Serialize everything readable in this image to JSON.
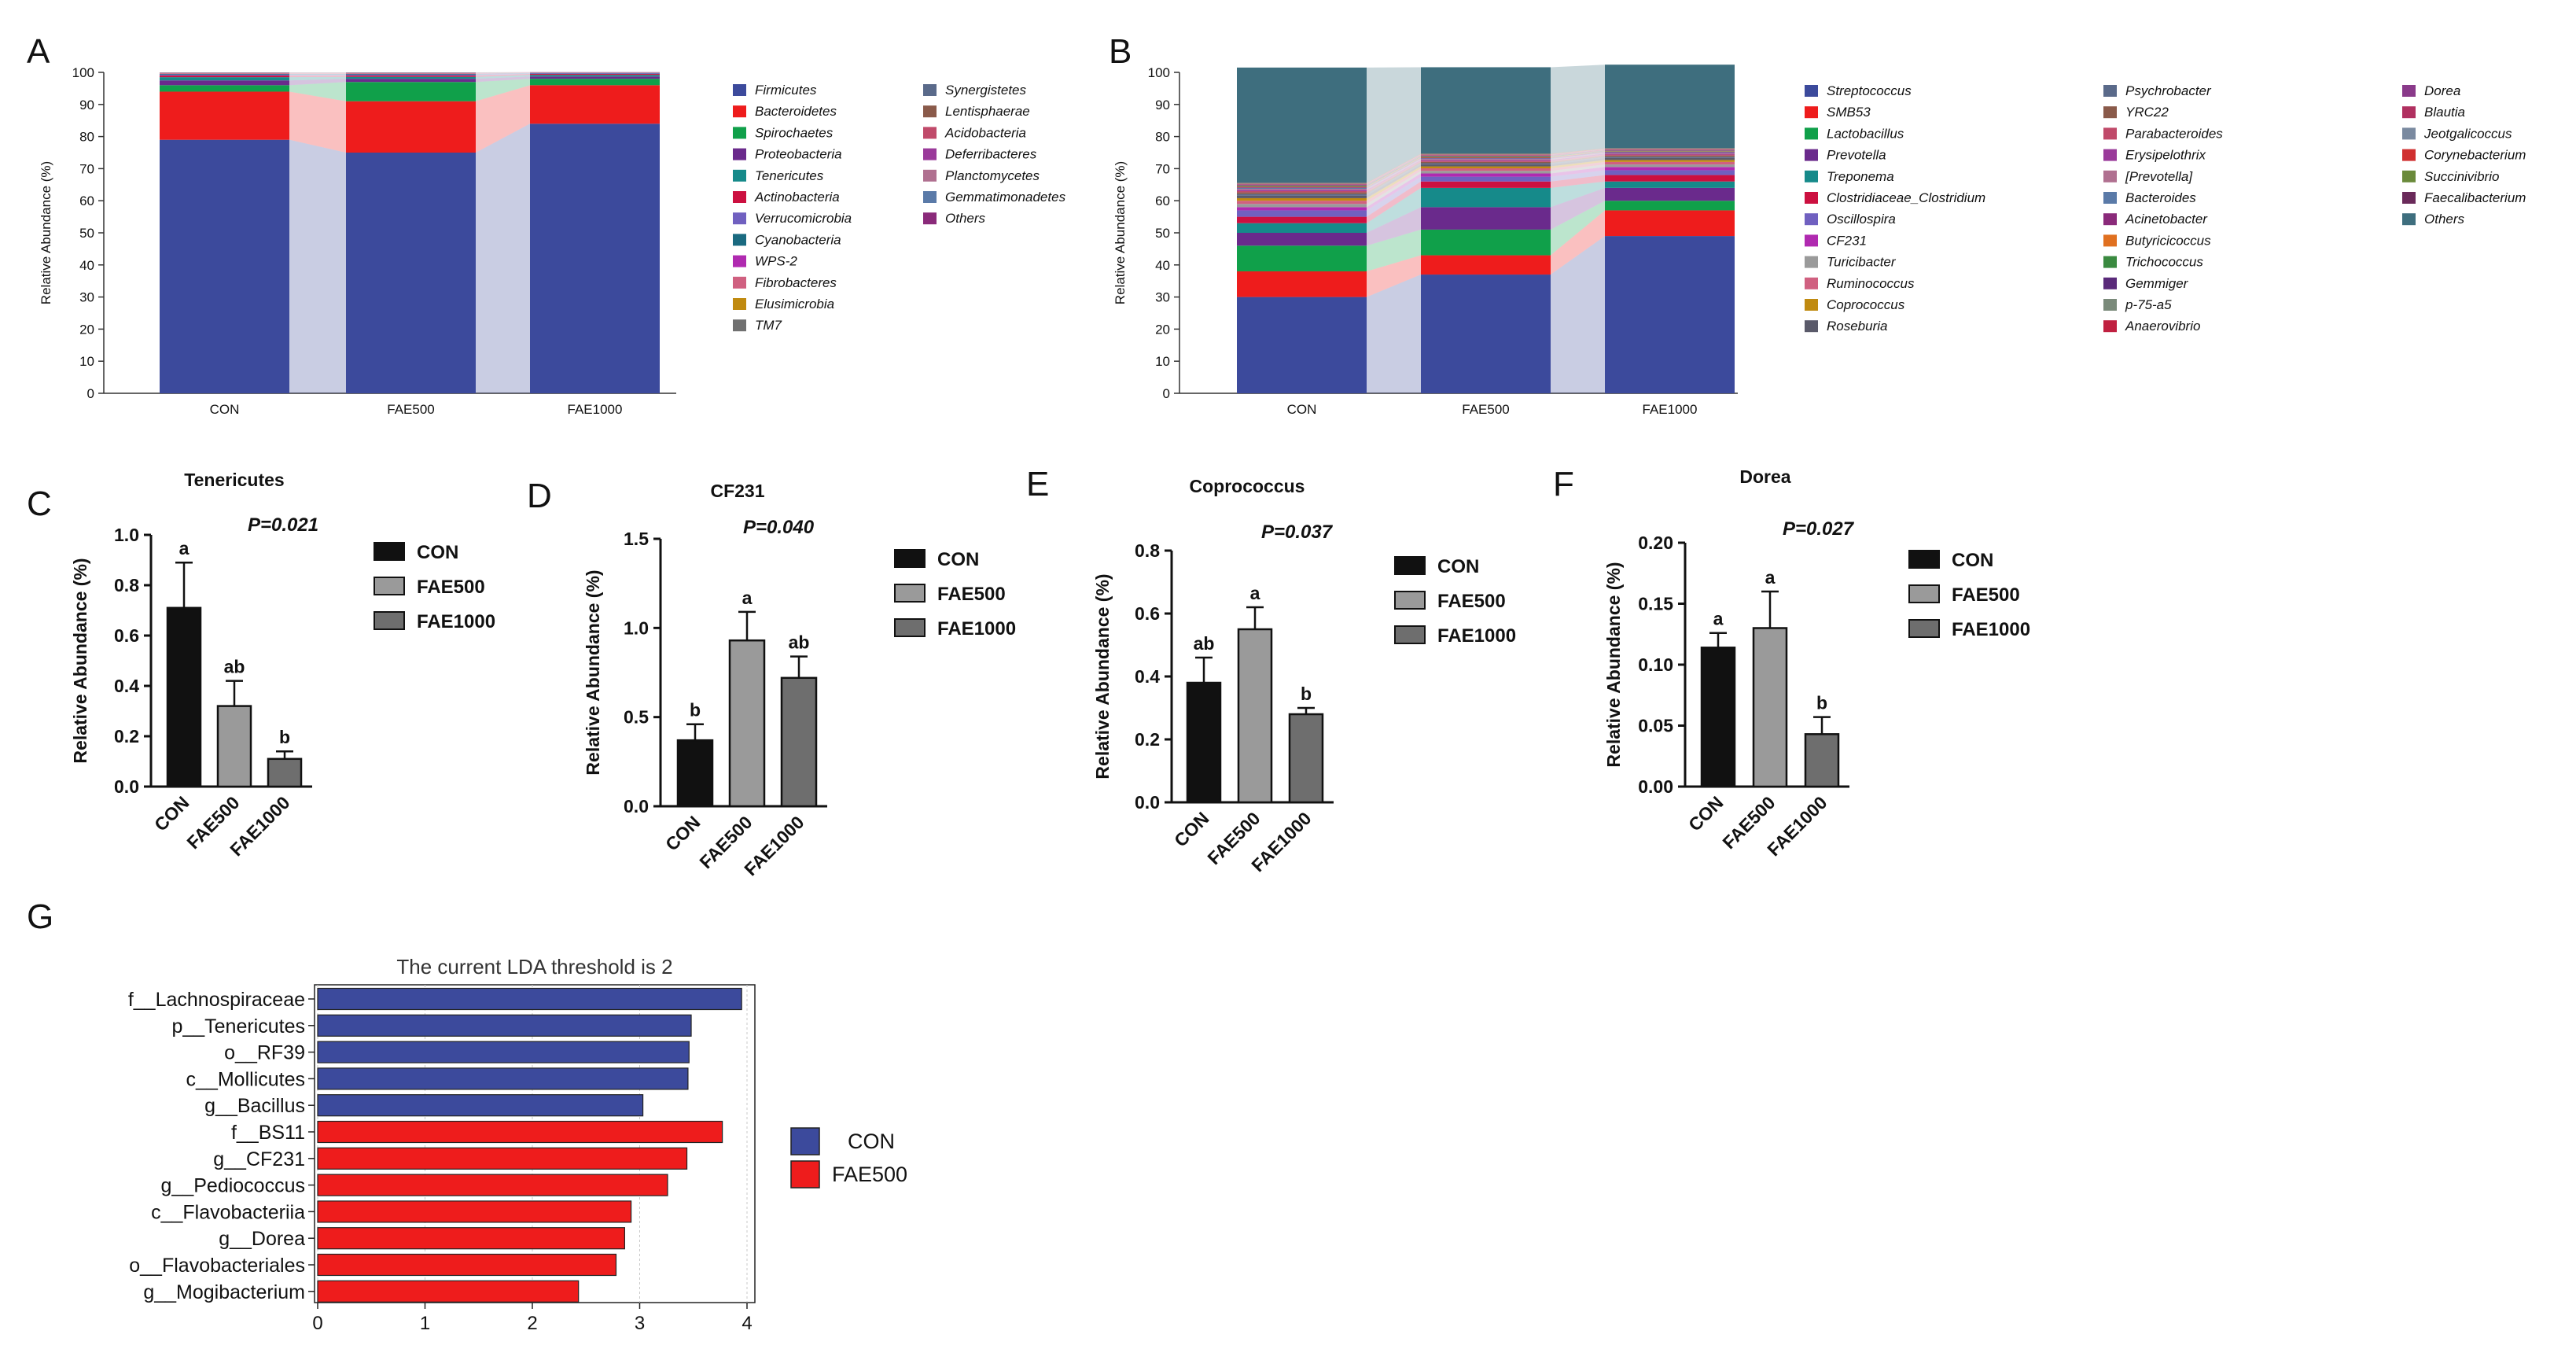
{
  "panel_labels": [
    "A",
    "B",
    "C",
    "D",
    "E",
    "F",
    "G"
  ],
  "colors": {
    "blue": "#3c4a9c",
    "red": "#ee1c1c",
    "green": "#10a04a",
    "purple": "#6a2a8c",
    "teal": "#168a8a",
    "crimson": "#cc1040",
    "lavender": "#7060c0",
    "dkteal": "#1a6a80",
    "magenta": "#b02ab0",
    "pink": "#d06080",
    "mustard": "#c08a10",
    "grey": "#707070",
    "slate": "#5a6a8a",
    "brown": "#8a5a4a",
    "rose": "#c04a6a",
    "violet": "#9a3a9a",
    "mauve": "#b07090",
    "steel": "#5a7aa8",
    "orange": "#e07020",
    "olive": "#6a8a3a",
    "ivy": "#3a8a40",
    "dkpurple": "#5a2a7a",
    "sage": "#7a8a7a",
    "ruby": "#c02040",
    "others_teal": "#3e6e7e",
    "black": "#111111",
    "gray_mid": "#9a9a9a",
    "gray_dark": "#6e6e6e"
  },
  "chart_data": [
    {
      "id": "A",
      "type": "bar",
      "stacked": true,
      "categories": [
        "CON",
        "FAE500",
        "FAE1000"
      ],
      "ylabel": "Relative Abundance (%)",
      "ylim": [
        0,
        100
      ],
      "yticks": [
        "0",
        "10",
        "20",
        "30",
        "40",
        "50",
        "60",
        "70",
        "80",
        "90",
        "100"
      ],
      "series": [
        {
          "name": "Firmicutes",
          "color": "#3c4a9c",
          "values": [
            79,
            75,
            84
          ]
        },
        {
          "name": "Bacteroidetes",
          "color": "#ee1c1c",
          "values": [
            15,
            16,
            12
          ]
        },
        {
          "name": "Spirochaetes",
          "color": "#10a04a",
          "values": [
            2,
            6,
            2
          ]
        },
        {
          "name": "Proteobacteria",
          "color": "#6a2a8c",
          "values": [
            1.5,
            1,
            0.7
          ]
        },
        {
          "name": "Tenericutes",
          "color": "#168a8a",
          "values": [
            1,
            0.6,
            0.5
          ]
        },
        {
          "name": "Actinobacteria",
          "color": "#cc1040",
          "values": [
            0.5,
            0.4,
            0.3
          ]
        },
        {
          "name": "Verrucomicrobia",
          "color": "#7060c0",
          "values": [
            0.3,
            0.3,
            0.2
          ]
        },
        {
          "name": "Cyanobacteria",
          "color": "#1a6a80",
          "values": [
            0.2,
            0.2,
            0.1
          ]
        },
        {
          "name": "WPS-2",
          "color": "#b02ab0",
          "values": [
            0.1,
            0.1,
            0.05
          ]
        },
        {
          "name": "Fibrobacteres",
          "color": "#d06080",
          "values": [
            0.1,
            0.1,
            0.05
          ]
        },
        {
          "name": "Elusimicrobia",
          "color": "#c08a10",
          "values": [
            0.05,
            0.05,
            0.03
          ]
        },
        {
          "name": "TM7",
          "color": "#707070",
          "values": [
            0.05,
            0.05,
            0.03
          ]
        },
        {
          "name": "Synergistetes",
          "color": "#5a6a8a",
          "values": [
            0.05,
            0.05,
            0.02
          ]
        },
        {
          "name": "Lentisphaerae",
          "color": "#8a5a4a",
          "values": [
            0.03,
            0.03,
            0.02
          ]
        },
        {
          "name": "Acidobacteria",
          "color": "#c04a6a",
          "values": [
            0.02,
            0.02,
            0.01
          ]
        },
        {
          "name": "Deferribacteres",
          "color": "#9a3a9a",
          "values": [
            0.02,
            0.02,
            0.01
          ]
        },
        {
          "name": "Planctomycetes",
          "color": "#b07090",
          "values": [
            0.02,
            0.02,
            0.01
          ]
        },
        {
          "name": "Gemmatimonadetes",
          "color": "#5a7aa8",
          "values": [
            0.01,
            0.01,
            0.01
          ]
        },
        {
          "name": "Others",
          "color": "#8a2a7a",
          "values": [
            0.05,
            0.05,
            0.04
          ]
        }
      ]
    },
    {
      "id": "B",
      "type": "bar",
      "stacked": true,
      "categories": [
        "CON",
        "FAE500",
        "FAE1000"
      ],
      "ylabel": "Relative Abundance (%)",
      "ylim": [
        0,
        100
      ],
      "yticks": [
        "0",
        "10",
        "20",
        "30",
        "40",
        "50",
        "60",
        "70",
        "80",
        "90",
        "100"
      ],
      "series": [
        {
          "name": "Streptococcus",
          "color": "#3c4a9c",
          "values": [
            30,
            37,
            49
          ]
        },
        {
          "name": "SMB53",
          "color": "#ee1c1c",
          "values": [
            8,
            6,
            8
          ]
        },
        {
          "name": "Lactobacillus",
          "color": "#10a04a",
          "values": [
            8,
            8,
            3
          ]
        },
        {
          "name": "Prevotella",
          "color": "#6a2a8c",
          "values": [
            4,
            7,
            4
          ]
        },
        {
          "name": "Treponema",
          "color": "#168a8a",
          "values": [
            3,
            6,
            2
          ]
        },
        {
          "name": "Clostridiaceae_Clostridium",
          "color": "#cc1040",
          "values": [
            2,
            2,
            2
          ]
        },
        {
          "name": "Oscillospira",
          "color": "#7060c0",
          "values": [
            2,
            1.5,
            1.5
          ]
        },
        {
          "name": "CF231",
          "color": "#b02ab0",
          "values": [
            1,
            1,
            1
          ]
        },
        {
          "name": "Turicibacter",
          "color": "#9a9a9a",
          "values": [
            1,
            0.8,
            0.8
          ]
        },
        {
          "name": "Ruminococcus",
          "color": "#d06080",
          "values": [
            1,
            0.8,
            0.8
          ]
        },
        {
          "name": "Coprococcus",
          "color": "#c08a10",
          "values": [
            0.8,
            0.6,
            0.6
          ]
        },
        {
          "name": "Roseburia",
          "color": "#5a5a6a",
          "values": [
            0.8,
            0.6,
            0.6
          ]
        },
        {
          "name": "Psychrobacter",
          "color": "#5a6a8a",
          "values": [
            0.5,
            0.4,
            0.4
          ]
        },
        {
          "name": "YRC22",
          "color": "#8a5a4a",
          "values": [
            0.5,
            0.4,
            0.4
          ]
        },
        {
          "name": "Parabacteroides",
          "color": "#c04a6a",
          "values": [
            0.4,
            0.3,
            0.3
          ]
        },
        {
          "name": "Erysipelothrix",
          "color": "#9a3a9a",
          "values": [
            0.4,
            0.3,
            0.3
          ]
        },
        {
          "name": "[Prevotella]",
          "color": "#b07090",
          "values": [
            0.3,
            0.3,
            0.2
          ]
        },
        {
          "name": "Bacteroides",
          "color": "#5a7aa8",
          "values": [
            0.3,
            0.2,
            0.2
          ]
        },
        {
          "name": "Acinetobacter",
          "color": "#8a2a7a",
          "values": [
            0.2,
            0.2,
            0.2
          ]
        },
        {
          "name": "Butyricicoccus",
          "color": "#e07020",
          "values": [
            0.2,
            0.2,
            0.1
          ]
        },
        {
          "name": "Trichococcus",
          "color": "#3a8a40",
          "values": [
            0.2,
            0.2,
            0.1
          ]
        },
        {
          "name": "Gemmiger",
          "color": "#5a2a7a",
          "values": [
            0.2,
            0.1,
            0.1
          ]
        },
        {
          "name": "p-75-a5",
          "color": "#7a8a7a",
          "values": [
            0.1,
            0.1,
            0.1
          ]
        },
        {
          "name": "Anaerovibrio",
          "color": "#c02040",
          "values": [
            0.1,
            0.1,
            0.1
          ]
        },
        {
          "name": "Dorea",
          "color": "#8a3a8a",
          "values": [
            0.1,
            0.1,
            0.1
          ]
        },
        {
          "name": "Blautia",
          "color": "#b03060",
          "values": [
            0.1,
            0.1,
            0.1
          ]
        },
        {
          "name": "Jeotgalicoccus",
          "color": "#7a8aa0",
          "values": [
            0.1,
            0.1,
            0.1
          ]
        },
        {
          "name": "Corynebacterium",
          "color": "#d03030",
          "values": [
            0.1,
            0.1,
            0.1
          ]
        },
        {
          "name": "Succinivibrio",
          "color": "#6a8a3a",
          "values": [
            0.1,
            0.1,
            0.1
          ]
        },
        {
          "name": "Faecalibacterium",
          "color": "#6a2a5a",
          "values": [
            0.1,
            0.1,
            0.1
          ]
        },
        {
          "name": "Others",
          "color": "#3e6e7e",
          "values": [
            35.9,
            26.9,
            26.0
          ]
        }
      ]
    },
    {
      "id": "C",
      "type": "bar",
      "title": "Tenericutes",
      "pvalue": "P=0.021",
      "ylabel": "Relative Abundance (%)",
      "ylim": [
        0,
        1.0
      ],
      "yticks": [
        "0.0",
        "0.2",
        "0.4",
        "0.6",
        "0.8",
        "1.0"
      ],
      "categories": [
        "CON",
        "FAE500",
        "FAE1000"
      ],
      "values": [
        0.71,
        0.32,
        0.11
      ],
      "errors": [
        0.18,
        0.1,
        0.03
      ],
      "letters": [
        "a",
        "ab",
        "b"
      ],
      "legend": [
        "CON",
        "FAE500",
        "FAE1000"
      ]
    },
    {
      "id": "D",
      "type": "bar",
      "title": "CF231",
      "pvalue": "P=0.040",
      "ylabel": "Relative Abundance (%)",
      "ylim": [
        0,
        1.5
      ],
      "yticks": [
        "0.0",
        "0.5",
        "1.0",
        "1.5"
      ],
      "categories": [
        "CON",
        "FAE500",
        "FAE1000"
      ],
      "values": [
        0.37,
        0.93,
        0.72
      ],
      "errors": [
        0.09,
        0.16,
        0.12
      ],
      "letters": [
        "b",
        "a",
        "ab"
      ],
      "legend": [
        "CON",
        "FAE500",
        "FAE1000"
      ]
    },
    {
      "id": "E",
      "type": "bar",
      "title": "Coprococcus",
      "pvalue": "P=0.037",
      "ylabel": "Relative Abundance (%)",
      "ylim": [
        0,
        0.8
      ],
      "yticks": [
        "0.0",
        "0.2",
        "0.4",
        "0.6",
        "0.8"
      ],
      "categories": [
        "CON",
        "FAE500",
        "FAE1000"
      ],
      "values": [
        0.38,
        0.55,
        0.28
      ],
      "errors": [
        0.08,
        0.07,
        0.02
      ],
      "letters": [
        "ab",
        "a",
        "b"
      ],
      "legend": [
        "CON",
        "FAE500",
        "FAE1000"
      ]
    },
    {
      "id": "F",
      "type": "bar",
      "title": "Dorea",
      "pvalue": "P=0.027",
      "ylabel": "Relative Abundance (%)",
      "ylim": [
        0,
        0.2
      ],
      "yticks": [
        "0.00",
        "0.05",
        "0.10",
        "0.15",
        "0.20"
      ],
      "categories": [
        "CON",
        "FAE500",
        "FAE1000"
      ],
      "values": [
        0.114,
        0.13,
        0.043
      ],
      "errors": [
        0.012,
        0.03,
        0.014
      ],
      "letters": [
        "a",
        "a",
        "b"
      ],
      "legend": [
        "CON",
        "FAE500",
        "FAE1000"
      ]
    },
    {
      "id": "G",
      "type": "bar",
      "orientation": "horizontal",
      "title": "The current LDA threshold is 2",
      "xlim": [
        0,
        4.2
      ],
      "xticks": [
        "0",
        "1",
        "2",
        "3",
        "4"
      ],
      "categories": [
        "f__Lachnospiraceae",
        "p__Tenericutes",
        "o__RF39",
        "c__Mollicutes",
        "g__Bacillus",
        "f__BS11",
        "g__CF231",
        "g__Pediococcus",
        "c__Flavobacteriia",
        "g__Dorea",
        "o__Flavobacteriales",
        "g__Mogibacterium"
      ],
      "values": [
        3.95,
        3.48,
        3.46,
        3.45,
        3.03,
        3.77,
        3.44,
        3.26,
        2.92,
        2.86,
        2.78,
        2.43
      ],
      "groups": [
        "CON",
        "CON",
        "CON",
        "CON",
        "CON",
        "FAE500",
        "FAE500",
        "FAE500",
        "FAE500",
        "FAE500",
        "FAE500",
        "FAE500"
      ],
      "legend": [
        {
          "name": "CON",
          "color": "#3c4a9c"
        },
        {
          "name": "FAE500",
          "color": "#ee1c1c"
        }
      ]
    }
  ]
}
